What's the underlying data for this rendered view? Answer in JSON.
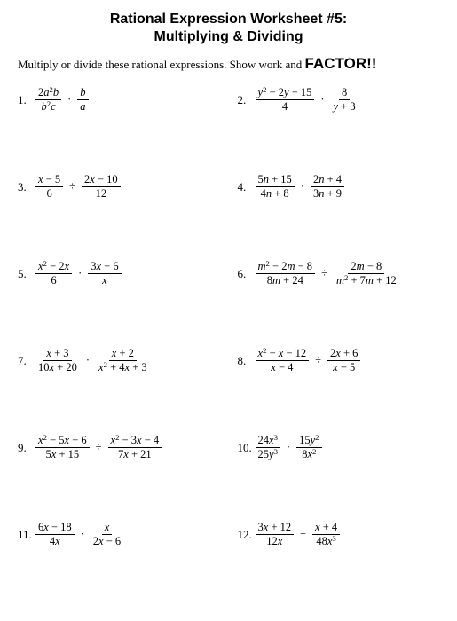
{
  "title_line1": "Rational Expression Worksheet #5:",
  "title_line2": "Multiplying & Dividing",
  "instructions_prefix": "Multiply or divide these rational expressions. Show work and ",
  "instructions_emph": "FACTOR!!",
  "dot": "·",
  "div": "÷",
  "problems": [
    {
      "num": "1.",
      "parts": [
        {
          "type": "frac",
          "n": "2a²b",
          "d": "b²c"
        },
        {
          "type": "op",
          "v": "·"
        },
        {
          "type": "frac",
          "n": "b",
          "d": "a"
        }
      ]
    },
    {
      "num": "2.",
      "parts": [
        {
          "type": "frac",
          "n": "y² − 2y − 15",
          "d": "4"
        },
        {
          "type": "op",
          "v": "·"
        },
        {
          "type": "frac",
          "n": "8",
          "d": "y + 3"
        }
      ]
    },
    {
      "num": "3.",
      "parts": [
        {
          "type": "frac",
          "n": "x − 5",
          "d": "6"
        },
        {
          "type": "op",
          "v": "÷"
        },
        {
          "type": "frac",
          "n": "2x − 10",
          "d": "12"
        }
      ]
    },
    {
      "num": "4.",
      "parts": [
        {
          "type": "frac",
          "n": "5n + 15",
          "d": "4n + 8"
        },
        {
          "type": "op",
          "v": "·"
        },
        {
          "type": "frac",
          "n": "2n + 4",
          "d": "3n + 9"
        }
      ]
    },
    {
      "num": "5.",
      "parts": [
        {
          "type": "frac",
          "n": "x² − 2x",
          "d": "6"
        },
        {
          "type": "op",
          "v": "·"
        },
        {
          "type": "frac",
          "n": "3x − 6",
          "d": "x"
        }
      ]
    },
    {
      "num": "6.",
      "parts": [
        {
          "type": "frac",
          "n": "m² − 2m − 8",
          "d": "8m + 24"
        },
        {
          "type": "op",
          "v": "÷"
        },
        {
          "type": "frac",
          "n": "2m − 8",
          "d": "m² + 7m + 12"
        }
      ]
    },
    {
      "num": "7.",
      "parts": [
        {
          "type": "frac",
          "n": "x + 3",
          "d": "10x + 20"
        },
        {
          "type": "op",
          "v": "·"
        },
        {
          "type": "frac",
          "n": "x + 2",
          "d": "x² + 4x + 3"
        }
      ]
    },
    {
      "num": "8.",
      "parts": [
        {
          "type": "frac",
          "n": "x² − x − 12",
          "d": "x − 4"
        },
        {
          "type": "op",
          "v": "÷"
        },
        {
          "type": "frac",
          "n": "2x + 6",
          "d": "x − 5"
        }
      ]
    },
    {
      "num": "9.",
      "parts": [
        {
          "type": "frac",
          "n": "x² − 5x − 6",
          "d": "5x + 15"
        },
        {
          "type": "op",
          "v": "÷"
        },
        {
          "type": "frac",
          "n": "x² − 3x − 4",
          "d": "7x + 21"
        }
      ]
    },
    {
      "num": "10.",
      "parts": [
        {
          "type": "frac",
          "n": "24x³",
          "d": "25y³"
        },
        {
          "type": "op",
          "v": "·"
        },
        {
          "type": "frac",
          "n": "15y²",
          "d": "8x²"
        }
      ]
    },
    {
      "num": "11.",
      "parts": [
        {
          "type": "frac",
          "n": "6x − 18",
          "d": "4x"
        },
        {
          "type": "op",
          "v": "·"
        },
        {
          "type": "frac",
          "n": "x",
          "d": "2x − 6"
        }
      ]
    },
    {
      "num": "12.",
      "parts": [
        {
          "type": "frac",
          "n": "3x + 12",
          "d": "12x"
        },
        {
          "type": "op",
          "v": "÷"
        },
        {
          "type": "frac",
          "n": "x + 4",
          "d": "48x³"
        }
      ]
    }
  ]
}
